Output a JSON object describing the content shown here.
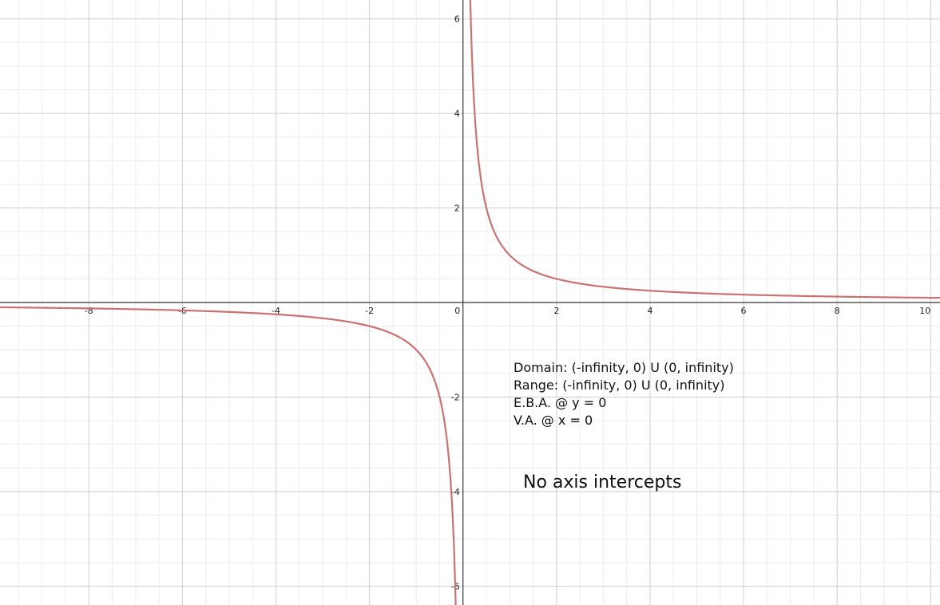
{
  "chart_data": {
    "type": "line",
    "xlim": [
      -9.9,
      10.2
    ],
    "ylim": [
      -6.4,
      6.4
    ],
    "minor_grid_step": 0.5,
    "major_grid_step": 2,
    "grid": true,
    "x_ticks": [
      -8,
      -6,
      -4,
      -2,
      0,
      2,
      4,
      6,
      8,
      10
    ],
    "y_ticks": [
      -6,
      -4,
      -2,
      2,
      4,
      6
    ],
    "series": [
      {
        "function": "y = 1/x",
        "color": "#c87272",
        "x_min": -9.9,
        "x_max": 10.2
      }
    ],
    "annotations": {
      "lines": [
        "Domain: (-infinity, 0) U (0, infinity)",
        "Range: (-infinity, 0) U (0, infinity)",
        "E.B.A. @ y = 0",
        "V.A. @ x = 0"
      ],
      "intercepts": "No axis intercepts"
    }
  }
}
